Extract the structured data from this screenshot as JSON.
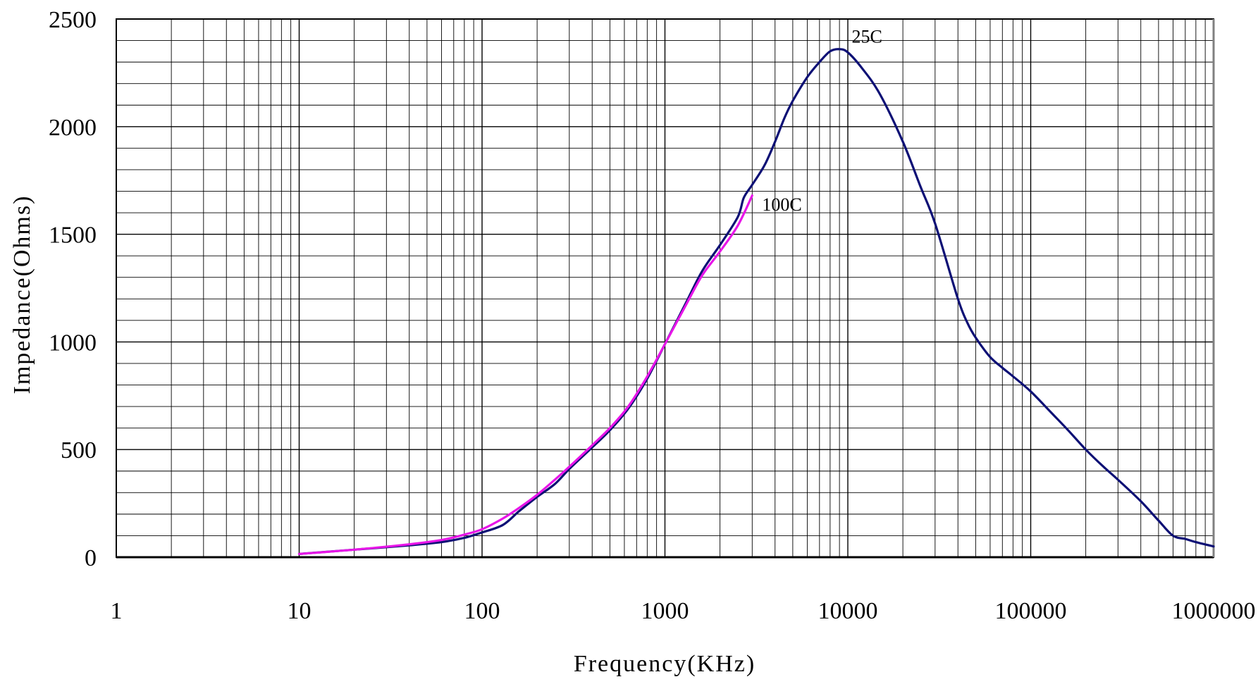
{
  "chart_data": {
    "type": "line",
    "title": "",
    "xlabel": "Frequency(KHz)",
    "ylabel": "Impedance(Ohms)",
    "x_scale": "log",
    "xlim": [
      1,
      1000000
    ],
    "ylim": [
      0,
      2500
    ],
    "x_ticks": [
      1,
      10,
      100,
      1000,
      10000,
      100000,
      1000000
    ],
    "x_tick_labels": [
      "1",
      "10",
      "100",
      "1000",
      "10000",
      "100000",
      "1000000"
    ],
    "y_ticks": [
      0,
      500,
      1000,
      1500,
      2000,
      2500
    ],
    "y_tick_labels": [
      "0",
      "500",
      "1000",
      "1500",
      "2000",
      "2500"
    ],
    "grid": true,
    "legend": "none",
    "series": [
      {
        "name": "25C",
        "color": "#0d1075",
        "x": [
          10,
          20,
          40,
          60,
          80,
          100,
          130,
          160,
          200,
          250,
          300,
          400,
          500,
          630,
          800,
          1000,
          1300,
          1600,
          2000,
          2500,
          2700,
          3000,
          3500,
          4000,
          4500,
          5000,
          6000,
          7000,
          8000,
          9000,
          10000,
          12000,
          15000,
          20000,
          25000,
          30000,
          40000,
          45000,
          50000,
          60000,
          70000,
          80000,
          100000,
          130000,
          160000,
          200000,
          250000,
          300000,
          400000,
          500000,
          600000,
          700000,
          800000,
          1000000
        ],
        "y": [
          15,
          35,
          55,
          70,
          90,
          115,
          150,
          215,
          280,
          340,
          410,
          510,
          590,
          690,
          830,
          990,
          1180,
          1330,
          1450,
          1580,
          1670,
          1730,
          1820,
          1930,
          2040,
          2120,
          2230,
          2300,
          2350,
          2360,
          2345,
          2270,
          2150,
          1930,
          1720,
          1550,
          1200,
          1090,
          1020,
          930,
          880,
          840,
          770,
          670,
          590,
          500,
          420,
          360,
          260,
          170,
          100,
          85,
          70,
          50
        ]
      },
      {
        "name": "100C",
        "color": "#e815e8",
        "x": [
          10,
          20,
          40,
          60,
          80,
          100,
          130,
          160,
          200,
          250,
          300,
          400,
          500,
          630,
          800,
          1000,
          1300,
          1600,
          2000,
          2500,
          3000
        ],
        "y": [
          15,
          35,
          60,
          80,
          105,
          130,
          180,
          230,
          290,
          360,
          420,
          520,
          600,
          700,
          840,
          990,
          1170,
          1310,
          1420,
          1540,
          1680
        ]
      }
    ],
    "annotations": [
      {
        "text": "25C",
        "x": 10500,
        "y": 2390
      },
      {
        "text": "100C",
        "x": 3400,
        "y": 1610
      }
    ]
  }
}
